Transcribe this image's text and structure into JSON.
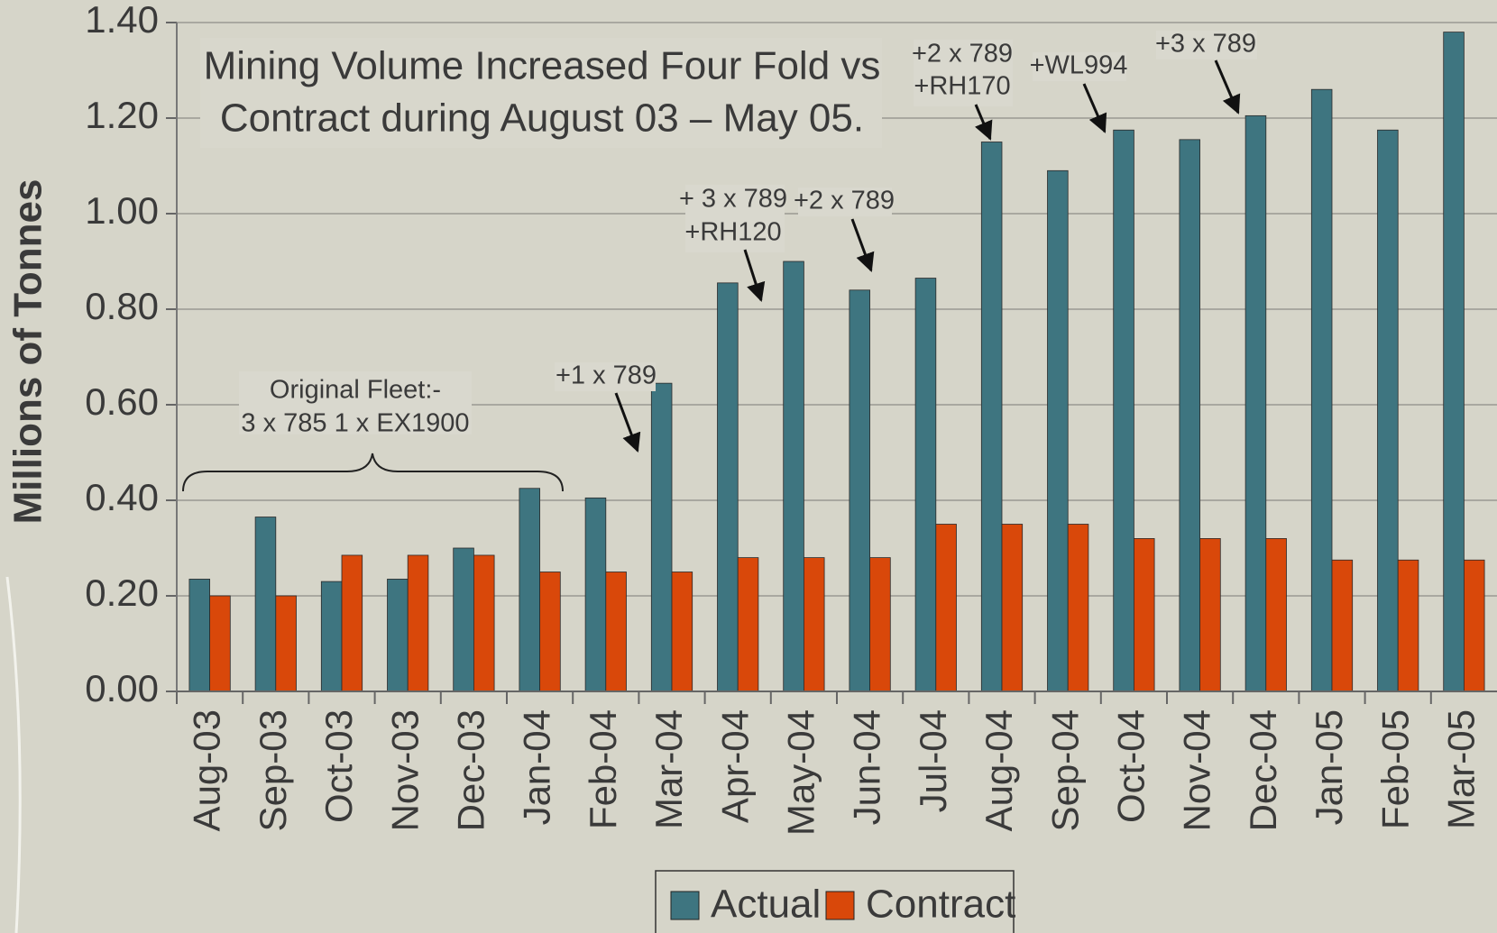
{
  "chart_data": {
    "type": "bar",
    "y_label": "Millions of Tonnes",
    "categories": [
      "Aug-03",
      "Sep-03",
      "Oct-03",
      "Nov-03",
      "Dec-03",
      "Jan-04",
      "Feb-04",
      "Mar-04",
      "Apr-04",
      "May-04",
      "Jun-04",
      "Jul-04",
      "Aug-04",
      "Sep-04",
      "Oct-04",
      "Nov-04",
      "Dec-04",
      "Jan-05",
      "Feb-05",
      "Mar-05"
    ],
    "series": [
      {
        "name": "Actual",
        "color": "#3e7580",
        "values": [
          0.235,
          0.365,
          0.23,
          0.235,
          0.3,
          0.425,
          0.405,
          0.645,
          0.855,
          0.9,
          0.84,
          0.865,
          1.15,
          1.09,
          1.175,
          1.155,
          1.205,
          1.26,
          1.175,
          1.38
        ]
      },
      {
        "name": "Contract",
        "color": "#d9480a",
        "values": [
          0.2,
          0.2,
          0.285,
          0.285,
          0.285,
          0.25,
          0.25,
          0.25,
          0.28,
          0.28,
          0.28,
          0.35,
          0.35,
          0.35,
          0.32,
          0.32,
          0.32,
          0.275,
          0.275,
          0.275
        ]
      }
    ],
    "ylim": [
      0,
      1.4
    ],
    "yticks": [
      {
        "value": 0,
        "label": "0.00"
      },
      {
        "value": 0.2,
        "label": "0.20"
      },
      {
        "value": 0.4,
        "label": "0.40"
      },
      {
        "value": 0.6,
        "label": "0.60"
      },
      {
        "value": 0.8,
        "label": "0.80"
      },
      {
        "value": 1.0,
        "label": "1.00"
      },
      {
        "value": 1.2,
        "label": "1.20"
      },
      {
        "value": 1.4,
        "label": "1.40"
      }
    ],
    "grid": true,
    "legend": "bottom",
    "annotations": [
      {
        "lines": [
          "Mining Volume Increased Four Fold vs",
          "Contract during August 03 – May 05."
        ]
      },
      {
        "lines": [
          "Original Fleet:-",
          "3 x 785 1 x EX1900"
        ]
      },
      {
        "lines": [
          "+1 x 789"
        ]
      },
      {
        "lines": [
          "+ 3 x 789",
          "+RH120"
        ]
      },
      {
        "lines": [
          "+2 x 789"
        ]
      },
      {
        "lines": [
          "+2 x 789",
          "+RH170"
        ]
      },
      {
        "lines": [
          "+WL994"
        ]
      },
      {
        "lines": [
          "+3 x 789"
        ]
      }
    ]
  }
}
